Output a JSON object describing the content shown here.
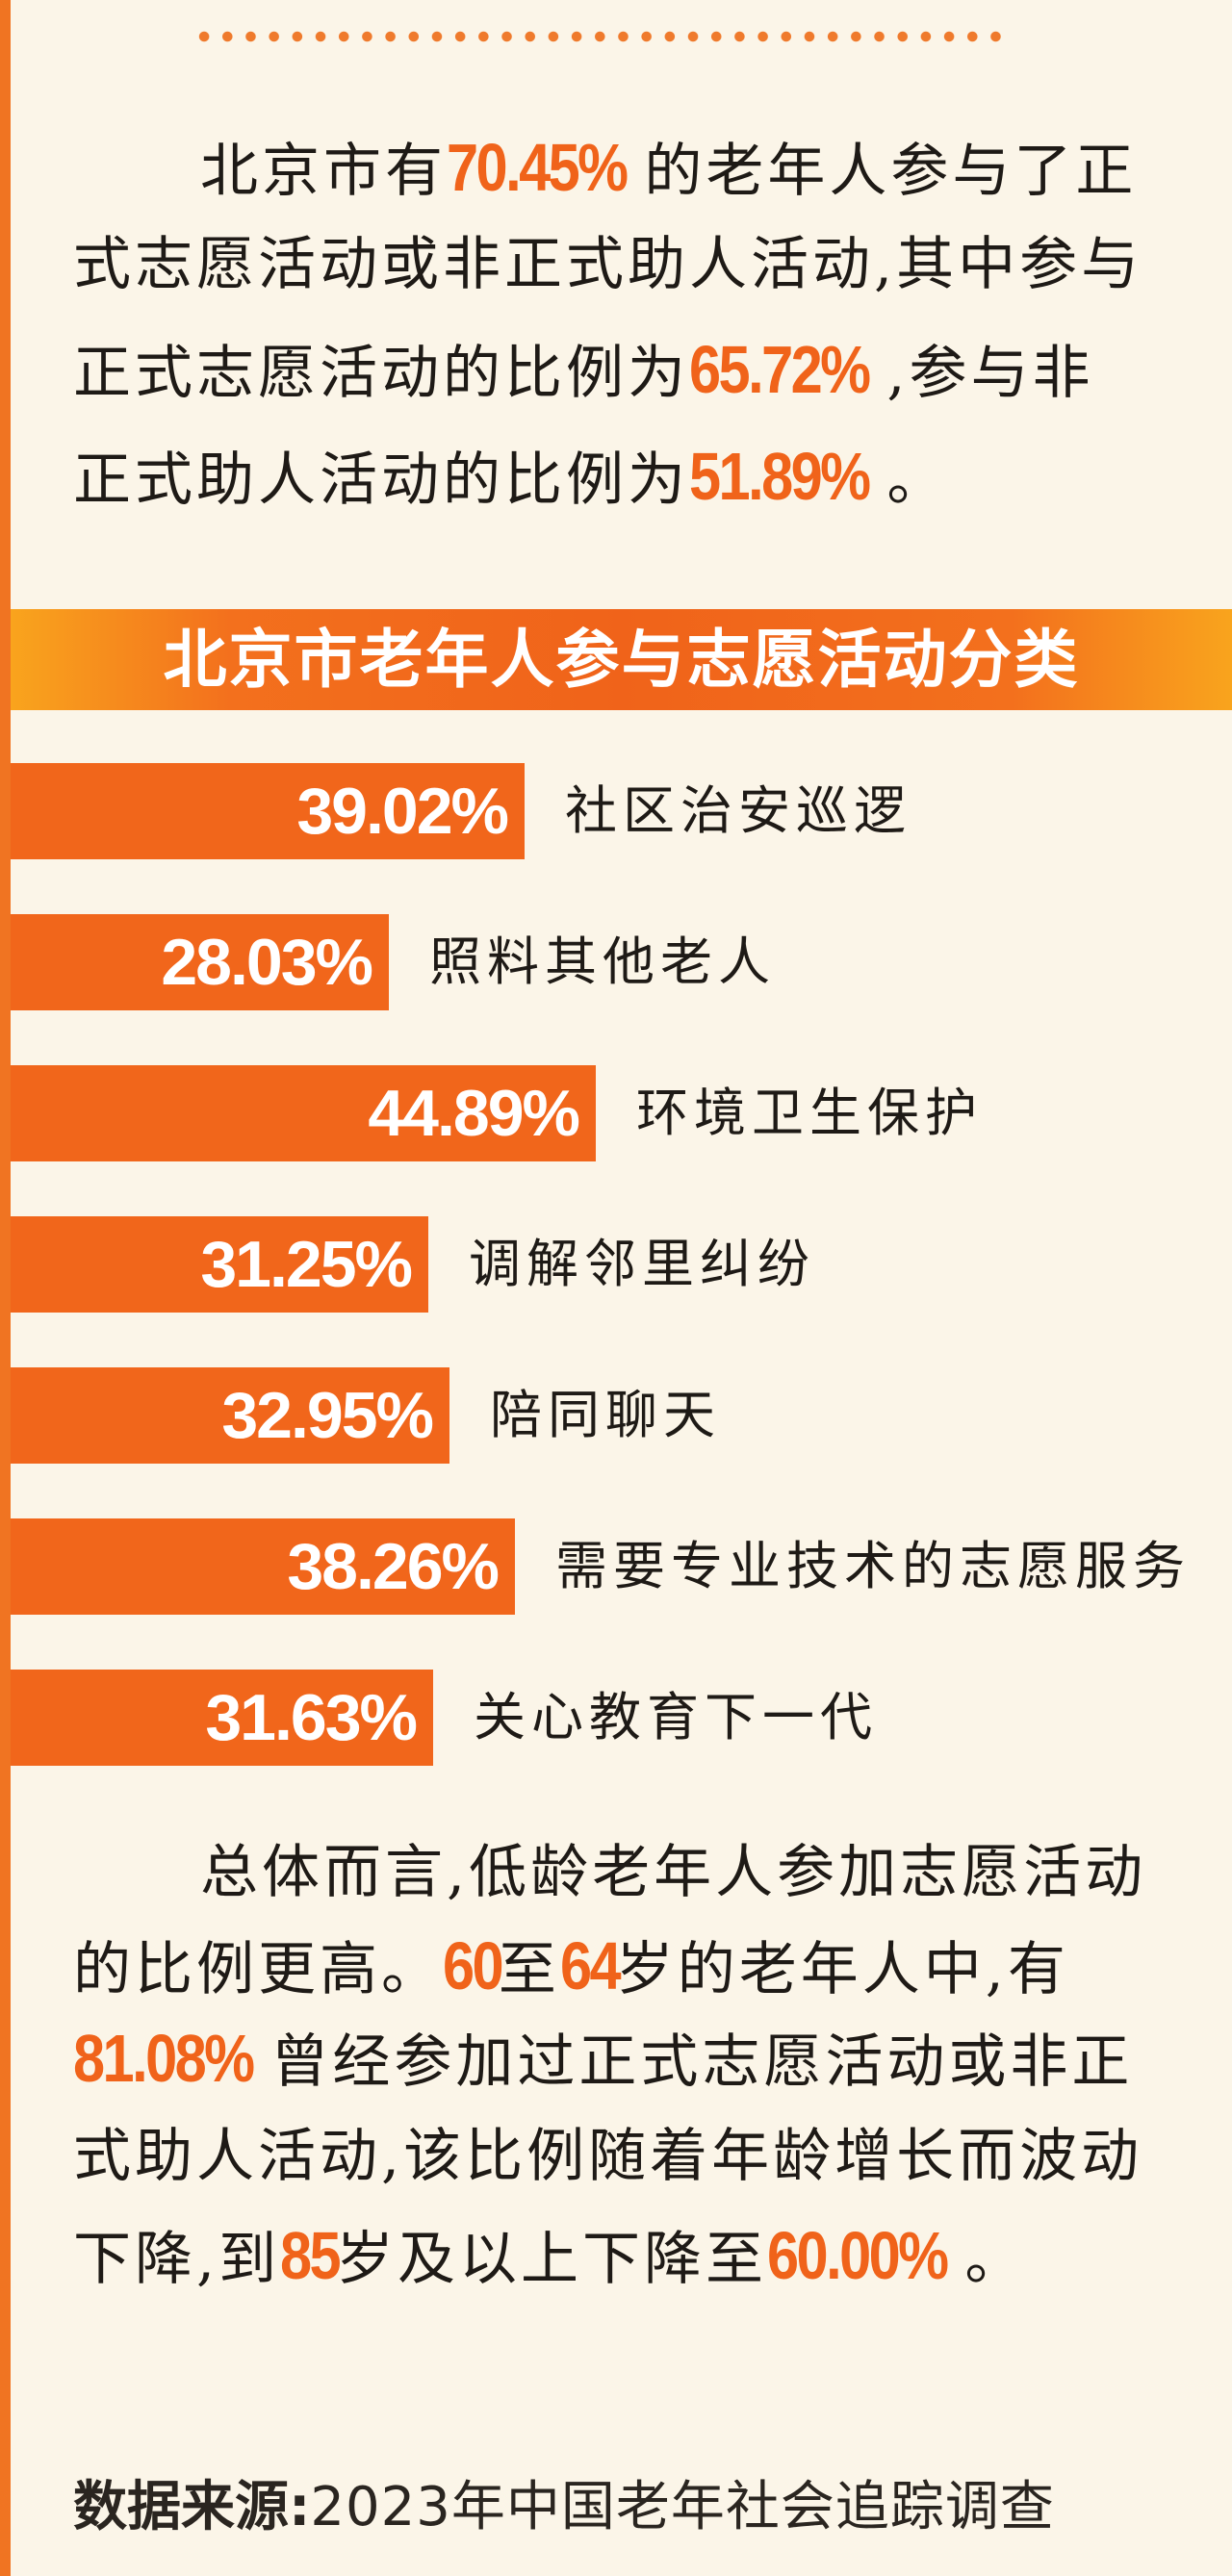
{
  "colors": {
    "accent": "#f0631a",
    "banner_edge": "#f9a41d",
    "background": "#fbf5e8",
    "text": "#1e1a16"
  },
  "intro": {
    "lines": [
      [
        {
          "t": "北京市有"
        },
        {
          "t": "70.45%",
          "hl": true
        },
        {
          "t": "的老年人参与了正"
        }
      ],
      [
        {
          "t": "式志愿活动或非正式助人活动,其中参与"
        }
      ],
      [
        {
          "t": "正式志愿活动的比例为"
        },
        {
          "t": "65.72%",
          "hl": true
        },
        {
          "t": ",参与非"
        }
      ],
      [
        {
          "t": "正式助人活动的比例为"
        },
        {
          "t": "51.89%",
          "hl": true
        },
        {
          "t": "。"
        }
      ]
    ]
  },
  "chart_data": {
    "type": "bar",
    "orientation": "horizontal",
    "title": "北京市老年人参与志愿活动分类",
    "categories": [
      "社区治安巡逻",
      "照料其他老人",
      "环境卫生保护",
      "调解邻里纠纷",
      "陪同聊天",
      "需要专业技术的志愿服务",
      "关心教育下一代"
    ],
    "values": [
      39.02,
      28.03,
      44.89,
      31.25,
      32.95,
      38.26,
      31.63
    ],
    "value_labels": [
      "39.02%",
      "28.03%",
      "44.89%",
      "31.25%",
      "32.95%",
      "38.26%",
      "31.63%"
    ],
    "unit": "%"
  },
  "summary": {
    "lines": [
      [
        {
          "t": "总体而言,低龄老年人参加志愿活动"
        }
      ],
      [
        {
          "t": "的比例更高。"
        },
        {
          "t": "60",
          "hl": true
        },
        {
          "t": "至"
        },
        {
          "t": "64",
          "hl": true
        },
        {
          "t": "岁的老年人中,有"
        }
      ],
      [
        {
          "t": "81.08%",
          "hl": true
        },
        {
          "t": "曾经参加过正式志愿活动或非正"
        }
      ],
      [
        {
          "t": "式助人活动,该比例随着年龄增长而波动"
        }
      ],
      [
        {
          "t": "下降,到"
        },
        {
          "t": "85",
          "hl": true
        },
        {
          "t": "岁及以上下降至"
        },
        {
          "t": "60.00%",
          "hl": true
        },
        {
          "t": "。"
        }
      ]
    ]
  },
  "source": {
    "label": "数据来源:",
    "value": "2023年中国老年社会追踪调查"
  }
}
